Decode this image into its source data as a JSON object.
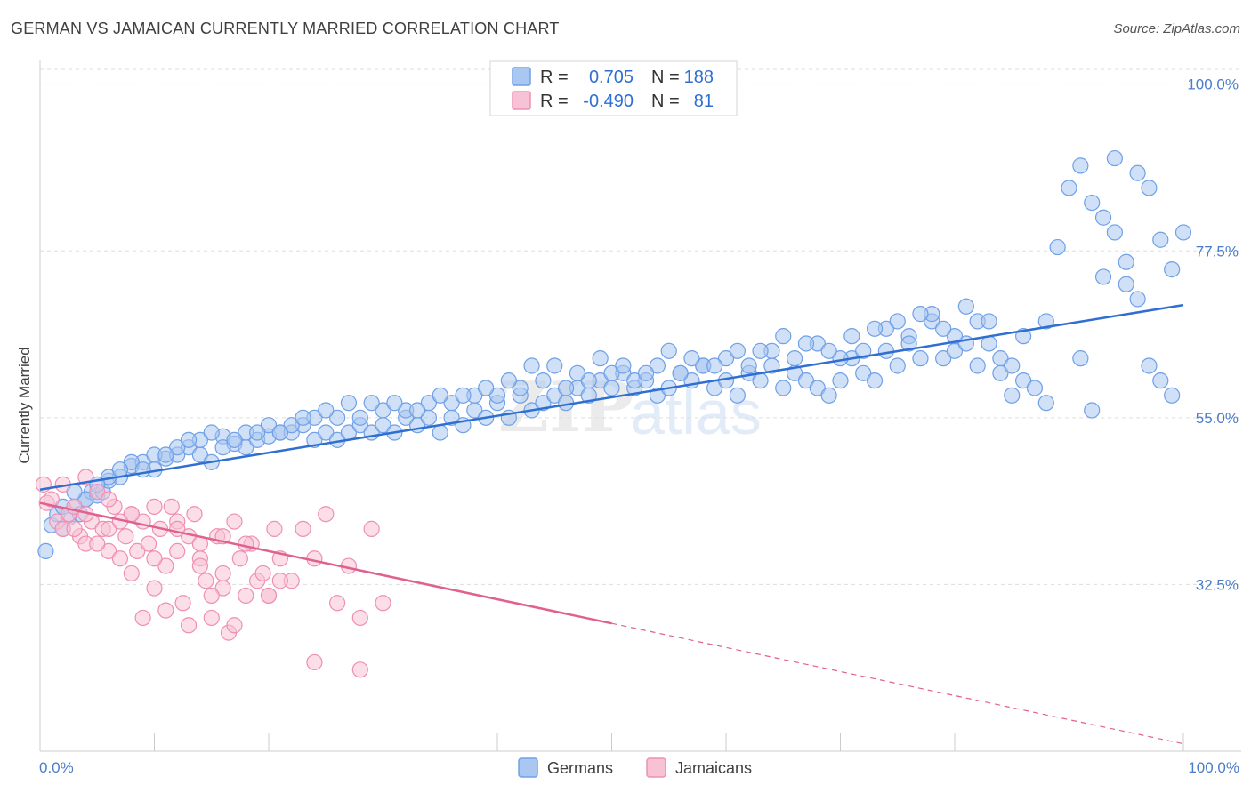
{
  "header": {
    "title": "GERMAN VS JAMAICAN CURRENTLY MARRIED CORRELATION CHART",
    "source": "Source: ZipAtlas.com"
  },
  "watermark": {
    "zip": "ZIP",
    "atlas": "atlas"
  },
  "chart_data": {
    "type": "scatter",
    "title": "GERMAN VS JAMAICAN CURRENTLY MARRIED CORRELATION CHART",
    "xlabel": "",
    "ylabel": "Currently Married",
    "xlim": [
      0,
      100
    ],
    "ylim": [
      10,
      102
    ],
    "x_tick_labels": [
      "0.0%",
      "100.0%"
    ],
    "y_ticks": [
      {
        "value": 100,
        "label": "100.0%"
      },
      {
        "value": 77.5,
        "label": "77.5%"
      },
      {
        "value": 55,
        "label": "55.0%"
      },
      {
        "value": 32.5,
        "label": "32.5%"
      }
    ],
    "grid": "horizontal dashed",
    "legend": {
      "placement": "top-center",
      "entries": [
        {
          "r_label": "R =",
          "r_value": "0.705",
          "n_label": "N =",
          "n_value": "188"
        },
        {
          "r_label": "R =",
          "r_value": "-0.490",
          "n_label": "N =",
          "n_value": "81"
        }
      ]
    },
    "bottom_legend": [
      "Germans",
      "Jamaicans"
    ],
    "series": [
      {
        "name": "Germans",
        "color": "#6fa0e8",
        "fill": "#a9c7f0",
        "line_color": "#2f6fd1",
        "trend": {
          "x0": 0,
          "y0": 45.3,
          "x1": 100,
          "y1": 70.2,
          "dashed_from": null
        },
        "points": [
          [
            0.5,
            37
          ],
          [
            1,
            40.5
          ],
          [
            1.5,
            42
          ],
          [
            2,
            40
          ],
          [
            2.5,
            41.5
          ],
          [
            3,
            43
          ],
          [
            3.5,
            42
          ],
          [
            4,
            44
          ],
          [
            4.5,
            45
          ],
          [
            5,
            44.5
          ],
          [
            5.5,
            45
          ],
          [
            6,
            46.5
          ],
          [
            7,
            47
          ],
          [
            8,
            48.5
          ],
          [
            9,
            49
          ],
          [
            10,
            48
          ],
          [
            11,
            49.5
          ],
          [
            12,
            50
          ],
          [
            13,
            51
          ],
          [
            14,
            50
          ],
          [
            15,
            49
          ],
          [
            16,
            52.5
          ],
          [
            17,
            51.5
          ],
          [
            18,
            51
          ],
          [
            19,
            52
          ],
          [
            20,
            52.5
          ],
          [
            21,
            53
          ],
          [
            22,
            53
          ],
          [
            23,
            54
          ],
          [
            24,
            52
          ],
          [
            25,
            53
          ],
          [
            26,
            52
          ],
          [
            27,
            53
          ],
          [
            28,
            54
          ],
          [
            29,
            53
          ],
          [
            30,
            54
          ],
          [
            31,
            53
          ],
          [
            32,
            55
          ],
          [
            33,
            54
          ],
          [
            34,
            55
          ],
          [
            35,
            53
          ],
          [
            36,
            55
          ],
          [
            37,
            54
          ],
          [
            38,
            56
          ],
          [
            39,
            55
          ],
          [
            40,
            57
          ],
          [
            41,
            55
          ],
          [
            42,
            58
          ],
          [
            43,
            56
          ],
          [
            44,
            57
          ],
          [
            45,
            58
          ],
          [
            46,
            57
          ],
          [
            47,
            59
          ],
          [
            48,
            58
          ],
          [
            49,
            60
          ],
          [
            50,
            59
          ],
          [
            51,
            61
          ],
          [
            52,
            59
          ],
          [
            53,
            60
          ],
          [
            54,
            58
          ],
          [
            55,
            59
          ],
          [
            56,
            61
          ],
          [
            57,
            60
          ],
          [
            58,
            62
          ],
          [
            59,
            59
          ],
          [
            60,
            60
          ],
          [
            61,
            58
          ],
          [
            62,
            61
          ],
          [
            63,
            60
          ],
          [
            64,
            62
          ],
          [
            65,
            59
          ],
          [
            66,
            61
          ],
          [
            67,
            60
          ],
          [
            68,
            59
          ],
          [
            69,
            58
          ],
          [
            70,
            60
          ],
          [
            71,
            63
          ],
          [
            72,
            61
          ],
          [
            73,
            60
          ],
          [
            74,
            64
          ],
          [
            75,
            62
          ],
          [
            76,
            66
          ],
          [
            77,
            63
          ],
          [
            78,
            68
          ],
          [
            79,
            63
          ],
          [
            80,
            64
          ],
          [
            81,
            65
          ],
          [
            82,
            62
          ],
          [
            83,
            65
          ],
          [
            84,
            63
          ],
          [
            85,
            58
          ],
          [
            86,
            60
          ],
          [
            87,
            59
          ],
          [
            88,
            57
          ],
          [
            89,
            78
          ],
          [
            90,
            86
          ],
          [
            91,
            89
          ],
          [
            92,
            84
          ],
          [
            93,
            82
          ],
          [
            94,
            90
          ],
          [
            95,
            76
          ],
          [
            96,
            88
          ],
          [
            97,
            86
          ],
          [
            98,
            79
          ],
          [
            99,
            75
          ],
          [
            91,
            63
          ],
          [
            92,
            56
          ],
          [
            93,
            74
          ],
          [
            94,
            80
          ],
          [
            95,
            73
          ],
          [
            96,
            71
          ],
          [
            97,
            62
          ],
          [
            98,
            60
          ],
          [
            99,
            58
          ],
          [
            100,
            80
          ],
          [
            2,
            43
          ],
          [
            4,
            44
          ],
          [
            6,
            47
          ],
          [
            8,
            49
          ],
          [
            10,
            50
          ],
          [
            12,
            51
          ],
          [
            14,
            52
          ],
          [
            16,
            51
          ],
          [
            18,
            53
          ],
          [
            20,
            54
          ],
          [
            22,
            54
          ],
          [
            24,
            55
          ],
          [
            26,
            55
          ],
          [
            28,
            55
          ],
          [
            30,
            56
          ],
          [
            32,
            56
          ],
          [
            34,
            57
          ],
          [
            36,
            57
          ],
          [
            38,
            58
          ],
          [
            40,
            58
          ],
          [
            42,
            59
          ],
          [
            44,
            60
          ],
          [
            46,
            59
          ],
          [
            48,
            60
          ],
          [
            50,
            61
          ],
          [
            52,
            60
          ],
          [
            54,
            62
          ],
          [
            56,
            61
          ],
          [
            58,
            62
          ],
          [
            60,
            63
          ],
          [
            62,
            62
          ],
          [
            64,
            64
          ],
          [
            66,
            63
          ],
          [
            68,
            65
          ],
          [
            70,
            63
          ],
          [
            72,
            64
          ],
          [
            74,
            67
          ],
          [
            76,
            65
          ],
          [
            78,
            69
          ],
          [
            80,
            66
          ],
          [
            82,
            68
          ],
          [
            84,
            61
          ],
          [
            86,
            66
          ],
          [
            88,
            68
          ],
          [
            3,
            45
          ],
          [
            5,
            46
          ],
          [
            7,
            48
          ],
          [
            9,
            48
          ],
          [
            11,
            50
          ],
          [
            13,
            52
          ],
          [
            15,
            53
          ],
          [
            17,
            52
          ],
          [
            19,
            53
          ],
          [
            21,
            53
          ],
          [
            23,
            55
          ],
          [
            25,
            56
          ],
          [
            27,
            57
          ],
          [
            29,
            57
          ],
          [
            31,
            57
          ],
          [
            33,
            56
          ],
          [
            35,
            58
          ],
          [
            37,
            58
          ],
          [
            39,
            59
          ],
          [
            41,
            60
          ],
          [
            43,
            62
          ],
          [
            45,
            62
          ],
          [
            47,
            61
          ],
          [
            49,
            63
          ],
          [
            51,
            62
          ],
          [
            53,
            61
          ],
          [
            55,
            64
          ],
          [
            57,
            63
          ],
          [
            59,
            62
          ],
          [
            61,
            64
          ],
          [
            63,
            64
          ],
          [
            65,
            66
          ],
          [
            67,
            65
          ],
          [
            69,
            64
          ],
          [
            71,
            66
          ],
          [
            73,
            67
          ],
          [
            75,
            68
          ],
          [
            77,
            69
          ],
          [
            79,
            67
          ],
          [
            81,
            70
          ],
          [
            83,
            68
          ],
          [
            85,
            62
          ]
        ]
      },
      {
        "name": "Jamaicans",
        "color": "#f08fb0",
        "fill": "#f7c2d5",
        "line_color": "#e06090",
        "trend": {
          "x0": 0,
          "y0": 43.5,
          "x1": 100,
          "y1": 11,
          "dashed_from": 50
        },
        "points": [
          [
            0.3,
            46
          ],
          [
            0.6,
            43.5
          ],
          [
            1,
            44
          ],
          [
            1.5,
            41
          ],
          [
            2,
            40
          ],
          [
            2.5,
            42
          ],
          [
            3,
            43
          ],
          [
            3.5,
            39
          ],
          [
            4,
            38
          ],
          [
            4.5,
            41
          ],
          [
            5,
            45
          ],
          [
            5.5,
            40
          ],
          [
            6,
            37
          ],
          [
            6.5,
            43
          ],
          [
            7,
            36
          ],
          [
            7.5,
            39
          ],
          [
            8,
            34
          ],
          [
            8.5,
            37
          ],
          [
            9,
            41
          ],
          [
            9.5,
            38
          ],
          [
            10,
            32
          ],
          [
            10.5,
            40
          ],
          [
            11,
            35
          ],
          [
            11.5,
            43
          ],
          [
            12,
            37
          ],
          [
            12.5,
            30
          ],
          [
            13,
            39
          ],
          [
            13.5,
            42
          ],
          [
            14,
            36
          ],
          [
            14.5,
            33
          ],
          [
            15,
            28
          ],
          [
            15.5,
            39
          ],
          [
            16,
            32
          ],
          [
            16.5,
            26
          ],
          [
            17,
            41
          ],
          [
            17.5,
            36
          ],
          [
            18,
            31
          ],
          [
            18.5,
            38
          ],
          [
            19,
            33
          ],
          [
            19.5,
            34
          ],
          [
            20,
            31
          ],
          [
            20.5,
            40
          ],
          [
            21,
            36
          ],
          [
            22,
            33
          ],
          [
            23,
            40
          ],
          [
            24,
            36
          ],
          [
            25,
            42
          ],
          [
            26,
            30
          ],
          [
            27,
            35
          ],
          [
            28,
            28
          ],
          [
            29,
            40
          ],
          [
            30,
            30
          ],
          [
            20,
            31
          ],
          [
            21,
            33
          ],
          [
            2,
            46
          ],
          [
            4,
            47
          ],
          [
            6,
            44
          ],
          [
            8,
            42
          ],
          [
            10,
            43
          ],
          [
            12,
            41
          ],
          [
            14,
            38
          ],
          [
            16,
            34
          ],
          [
            18,
            38
          ],
          [
            9,
            28
          ],
          [
            11,
            29
          ],
          [
            13,
            27
          ],
          [
            15,
            31
          ],
          [
            17,
            27
          ],
          [
            4,
            42
          ],
          [
            6,
            40
          ],
          [
            8,
            42
          ],
          [
            3,
            40
          ],
          [
            5,
            38
          ],
          [
            7,
            41
          ],
          [
            10,
            36
          ],
          [
            12,
            40
          ],
          [
            14,
            35
          ],
          [
            24,
            22
          ],
          [
            28,
            21
          ],
          [
            16,
            39
          ]
        ]
      }
    ]
  }
}
